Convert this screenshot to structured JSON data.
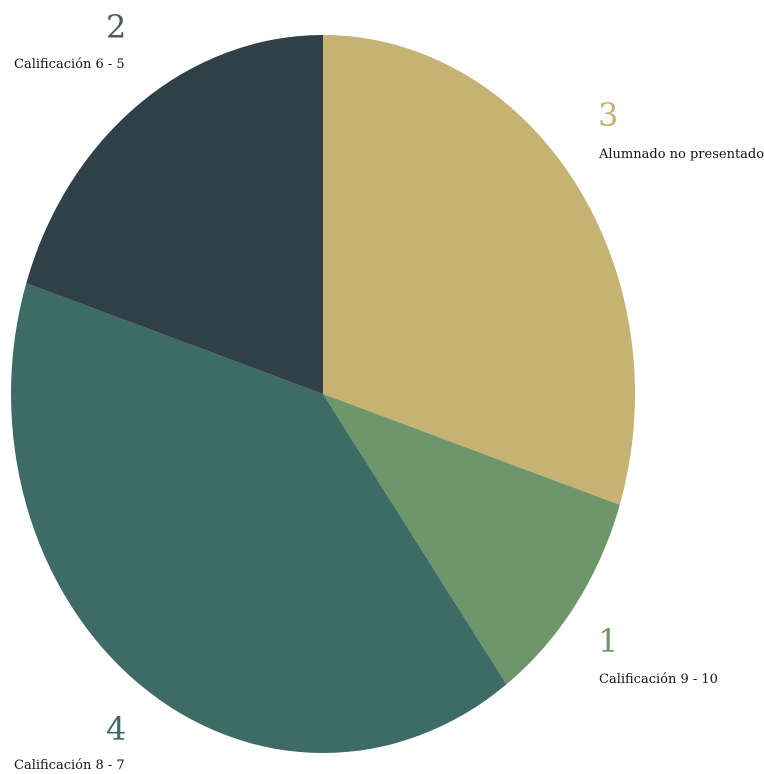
{
  "chart_data": {
    "type": "pie",
    "start_angle_deg": 0,
    "direction": "clockwise",
    "slices": [
      {
        "label": "Alumnado no presentados",
        "value": 3,
        "value_text": "3",
        "color": "#c6b273"
      },
      {
        "label": "Calificación 9 - 10",
        "value": 1,
        "value_text": "1",
        "color": "#6d976b"
      },
      {
        "label": "Calificación 8 - 7",
        "value": 4,
        "value_text": "4",
        "color": "#3e6b66"
      },
      {
        "label": "Calificación 6 - 5",
        "value": 2,
        "value_text": "2",
        "color": "#2f4049"
      }
    ],
    "value_text_colors": [
      "#c6b273",
      "#6d976b",
      "#3e6b66",
      "#4b5a61"
    ]
  }
}
